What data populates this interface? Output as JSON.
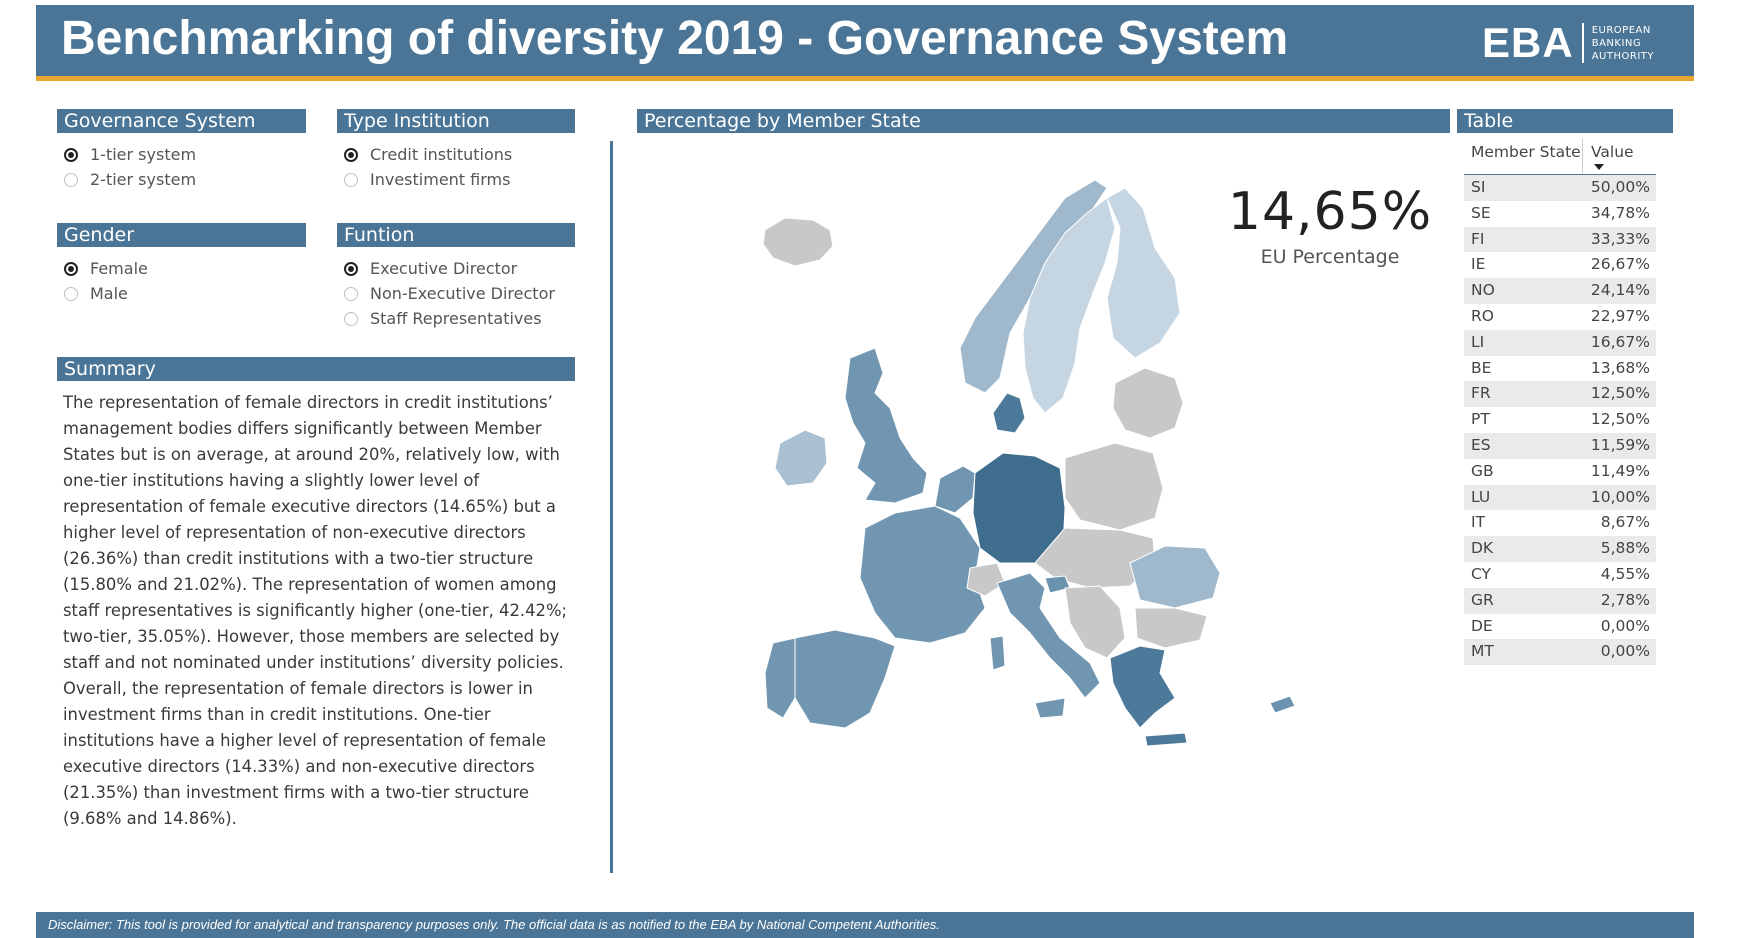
{
  "header": {
    "title": "Benchmarking of diversity 2019 - Governance System",
    "logo_abbr": "EBA",
    "logo_lines": [
      "EUROPEAN",
      "BANKING",
      "AUTHORITY"
    ]
  },
  "slicers": {
    "governance": {
      "title": "Governance System",
      "options": [
        {
          "label": "1-tier system",
          "selected": true
        },
        {
          "label": "2-tier system",
          "selected": false
        }
      ]
    },
    "type_institution": {
      "title": "Type Institution",
      "options": [
        {
          "label": "Credit institutions",
          "selected": true
        },
        {
          "label": "Investiment firms",
          "selected": false
        }
      ]
    },
    "gender": {
      "title": "Gender",
      "options": [
        {
          "label": "Female",
          "selected": true
        },
        {
          "label": "Male",
          "selected": false
        }
      ]
    },
    "function": {
      "title": "Funtion",
      "options": [
        {
          "label": "Executive Director",
          "selected": true
        },
        {
          "label": "Non-Executive Director",
          "selected": false
        },
        {
          "label": "Staff Representatives",
          "selected": false
        }
      ]
    }
  },
  "summary": {
    "title": "Summary",
    "text": "The representation of female directors in credit institutions’ management bodies differs significantly between Member States but is on average, at around 20%, relatively low, with one-tier institutions having a slightly lower level of representation of female executive directors (14.65%) but a higher level of representation of non-executive directors (26.36%) than credit institutions with a two-tier structure (15.80% and 21.02%). The representation of women among staff representatives is significantly higher (one-tier, 42.42%; two-tier, 35.05%). However, those members are selected by staff and not nominated under institutions’ diversity policies.  Overall, the representation of female directors is lower in investment firms than in credit institutions. One-tier institutions have a higher level of representation of female executive directors (14.33%) and non-executive directors (21.35%) than investment firms with a two-tier structure (9.68% and 14.86%)."
  },
  "map_section": {
    "title": "Percentage by Member State",
    "kpi_value": "14,65%",
    "kpi_label": "EU Percentage"
  },
  "colors": {
    "header": "#4a7596",
    "accent": "#e8a830",
    "no_data": "#c8c8c8",
    "scale_low": "#d4dfe9",
    "scale_high": "#3f6d8e"
  },
  "table": {
    "title": "Table",
    "col_state": "Member State",
    "col_value": "Value",
    "rows": [
      {
        "state": "SI",
        "value": "50,00%"
      },
      {
        "state": "SE",
        "value": "34,78%"
      },
      {
        "state": "FI",
        "value": "33,33%"
      },
      {
        "state": "IE",
        "value": "26,67%"
      },
      {
        "state": "NO",
        "value": "24,14%"
      },
      {
        "state": "RO",
        "value": "22,97%"
      },
      {
        "state": "LI",
        "value": "16,67%"
      },
      {
        "state": "BE",
        "value": "13,68%"
      },
      {
        "state": "FR",
        "value": "12,50%"
      },
      {
        "state": "PT",
        "value": "12,50%"
      },
      {
        "state": "ES",
        "value": "11,59%"
      },
      {
        "state": "GB",
        "value": "11,49%"
      },
      {
        "state": "LU",
        "value": "10,00%"
      },
      {
        "state": "IT",
        "value": "8,67%"
      },
      {
        "state": "DK",
        "value": "5,88%"
      },
      {
        "state": "CY",
        "value": "4,55%"
      },
      {
        "state": "GR",
        "value": "2,78%"
      },
      {
        "state": "DE",
        "value": "0,00%"
      },
      {
        "state": "MT",
        "value": "0,00%"
      }
    ]
  },
  "footer": {
    "disclaimer": "Disclaimer: This tool is provided for analytical and transparency purposes only. The official data is as notified to the EBA by National Competent Authorities."
  }
}
